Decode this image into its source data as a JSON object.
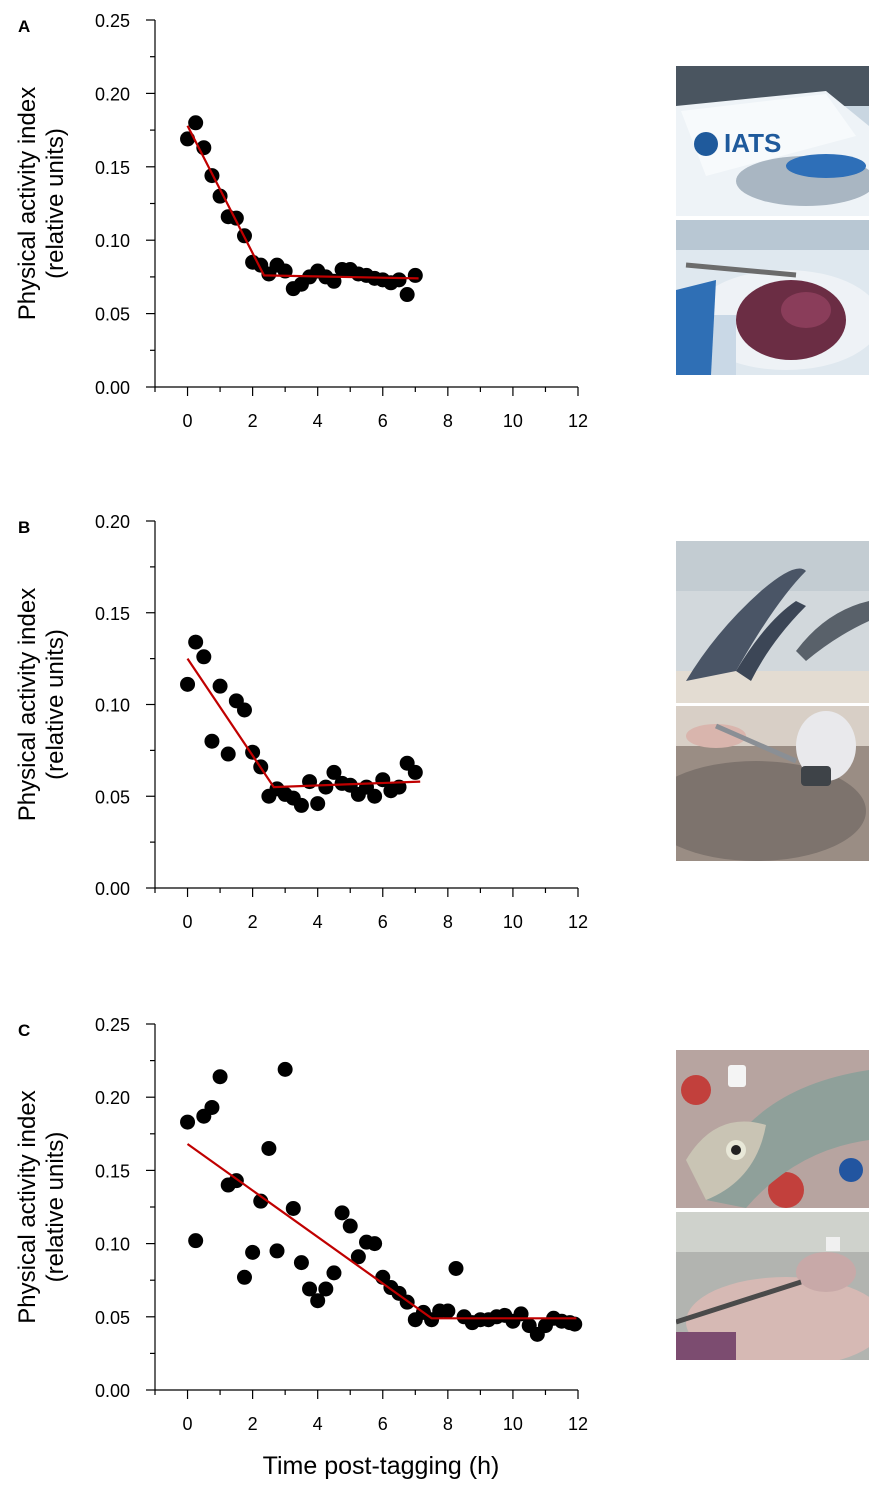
{
  "figure": {
    "x_axis_title": "Time post-tagging (h)",
    "photos": {
      "a_top_label": "IATS",
      "b_top_label": "",
      "c_top_label": ""
    }
  },
  "colors": {
    "points": "#000000",
    "fit_line": "#c00000",
    "axes": "#000000"
  },
  "chart_data": [
    {
      "type": "scatter",
      "panel_label": "A",
      "title": "",
      "xlabel": "",
      "ylabel": [
        "Physical activity index",
        "(relative units)"
      ],
      "xlim": [
        -1,
        12
      ],
      "ylim": [
        0,
        0.25
      ],
      "xticks": [
        0,
        2,
        4,
        6,
        8,
        10,
        12
      ],
      "yticks": [
        "0.00",
        "0.05",
        "0.10",
        "0.15",
        "0.20",
        "0.25"
      ],
      "grid": false,
      "series": [
        {
          "points": [
            [
              0,
              0.169
            ],
            [
              0.25,
              0.18
            ],
            [
              0.5,
              0.163
            ],
            [
              0.75,
              0.144
            ],
            [
              1.0,
              0.13
            ],
            [
              1.25,
              0.116
            ],
            [
              1.5,
              0.115
            ],
            [
              1.75,
              0.103
            ],
            [
              2.0,
              0.085
            ],
            [
              2.25,
              0.083
            ],
            [
              2.5,
              0.077
            ],
            [
              2.75,
              0.083
            ],
            [
              3.0,
              0.079
            ],
            [
              3.25,
              0.067
            ],
            [
              3.5,
              0.07
            ],
            [
              3.75,
              0.075
            ],
            [
              4.0,
              0.079
            ],
            [
              4.25,
              0.075
            ],
            [
              4.5,
              0.072
            ],
            [
              4.75,
              0.08
            ],
            [
              5.0,
              0.08
            ],
            [
              5.25,
              0.077
            ],
            [
              5.5,
              0.076
            ],
            [
              5.75,
              0.074
            ],
            [
              6.0,
              0.073
            ],
            [
              6.25,
              0.071
            ],
            [
              6.5,
              0.073
            ],
            [
              6.75,
              0.063
            ],
            [
              7.0,
              0.076
            ]
          ]
        }
      ],
      "fit_line": [
        [
          0,
          0.178
        ],
        [
          2.35,
          0.076
        ],
        [
          7.1,
          0.074
        ]
      ]
    },
    {
      "type": "scatter",
      "panel_label": "B",
      "title": "",
      "xlabel": "",
      "ylabel": [
        "Physical activity index",
        "(relative units)"
      ],
      "xlim": [
        -1,
        12
      ],
      "ylim": [
        0,
        0.2
      ],
      "xticks": [
        0,
        2,
        4,
        6,
        8,
        10,
        12
      ],
      "yticks": [
        "0.00",
        "0.05",
        "0.10",
        "0.15",
        "0.20"
      ],
      "grid": false,
      "series": [
        {
          "points": [
            [
              0,
              0.111
            ],
            [
              0.25,
              0.134
            ],
            [
              0.5,
              0.126
            ],
            [
              0.75,
              0.08
            ],
            [
              1.0,
              0.11
            ],
            [
              1.25,
              0.073
            ],
            [
              1.5,
              0.102
            ],
            [
              1.75,
              0.097
            ],
            [
              2.0,
              0.074
            ],
            [
              2.25,
              0.066
            ],
            [
              2.5,
              0.05
            ],
            [
              2.75,
              0.054
            ],
            [
              3.0,
              0.051
            ],
            [
              3.25,
              0.049
            ],
            [
              3.5,
              0.045
            ],
            [
              3.75,
              0.058
            ],
            [
              4.0,
              0.046
            ],
            [
              4.25,
              0.055
            ],
            [
              4.5,
              0.063
            ],
            [
              4.75,
              0.057
            ],
            [
              5.0,
              0.056
            ],
            [
              5.25,
              0.051
            ],
            [
              5.5,
              0.055
            ],
            [
              5.75,
              0.05
            ],
            [
              6.0,
              0.059
            ],
            [
              6.25,
              0.053
            ],
            [
              6.5,
              0.055
            ],
            [
              6.75,
              0.068
            ],
            [
              7.0,
              0.063
            ]
          ]
        }
      ],
      "fit_line": [
        [
          0,
          0.125
        ],
        [
          2.65,
          0.055
        ],
        [
          7.15,
          0.058
        ]
      ]
    },
    {
      "type": "scatter",
      "panel_label": "C",
      "title": "",
      "xlabel": "Time post-tagging (h)",
      "ylabel": [
        "Physical activity index",
        "(relative units)"
      ],
      "xlim": [
        -1,
        12
      ],
      "ylim": [
        0,
        0.25
      ],
      "xticks": [
        0,
        2,
        4,
        6,
        8,
        10,
        12
      ],
      "yticks": [
        "0.00",
        "0.05",
        "0.10",
        "0.15",
        "0.20",
        "0.25"
      ],
      "grid": false,
      "series": [
        {
          "points": [
            [
              0,
              0.183
            ],
            [
              0.25,
              0.102
            ],
            [
              0.5,
              0.187
            ],
            [
              0.75,
              0.193
            ],
            [
              1.0,
              0.214
            ],
            [
              1.25,
              0.14
            ],
            [
              1.5,
              0.143
            ],
            [
              1.75,
              0.077
            ],
            [
              2.0,
              0.094
            ],
            [
              2.25,
              0.129
            ],
            [
              2.5,
              0.165
            ],
            [
              2.75,
              0.095
            ],
            [
              3.0,
              0.219
            ],
            [
              3.25,
              0.124
            ],
            [
              3.5,
              0.087
            ],
            [
              3.75,
              0.069
            ],
            [
              4.0,
              0.061
            ],
            [
              4.25,
              0.069
            ],
            [
              4.5,
              0.08
            ],
            [
              4.75,
              0.121
            ],
            [
              5.0,
              0.112
            ],
            [
              5.25,
              0.091
            ],
            [
              5.5,
              0.101
            ],
            [
              5.75,
              0.1
            ],
            [
              6.0,
              0.077
            ],
            [
              6.25,
              0.07
            ],
            [
              6.5,
              0.066
            ],
            [
              6.75,
              0.06
            ],
            [
              7.0,
              0.048
            ],
            [
              7.25,
              0.053
            ],
            [
              7.5,
              0.048
            ],
            [
              7.75,
              0.054
            ],
            [
              8.0,
              0.054
            ],
            [
              8.25,
              0.083
            ],
            [
              8.5,
              0.05
            ],
            [
              8.75,
              0.046
            ],
            [
              9.0,
              0.048
            ],
            [
              9.25,
              0.048
            ],
            [
              9.5,
              0.05
            ],
            [
              9.75,
              0.051
            ],
            [
              10.0,
              0.047
            ],
            [
              10.25,
              0.052
            ],
            [
              10.5,
              0.044
            ],
            [
              10.75,
              0.038
            ],
            [
              11.0,
              0.044
            ],
            [
              11.25,
              0.049
            ],
            [
              11.5,
              0.047
            ],
            [
              11.75,
              0.046
            ],
            [
              11.9,
              0.045
            ]
          ]
        }
      ],
      "fit_line": [
        [
          0,
          0.168
        ],
        [
          7.5,
          0.049
        ],
        [
          11.95,
          0.049
        ]
      ]
    }
  ]
}
